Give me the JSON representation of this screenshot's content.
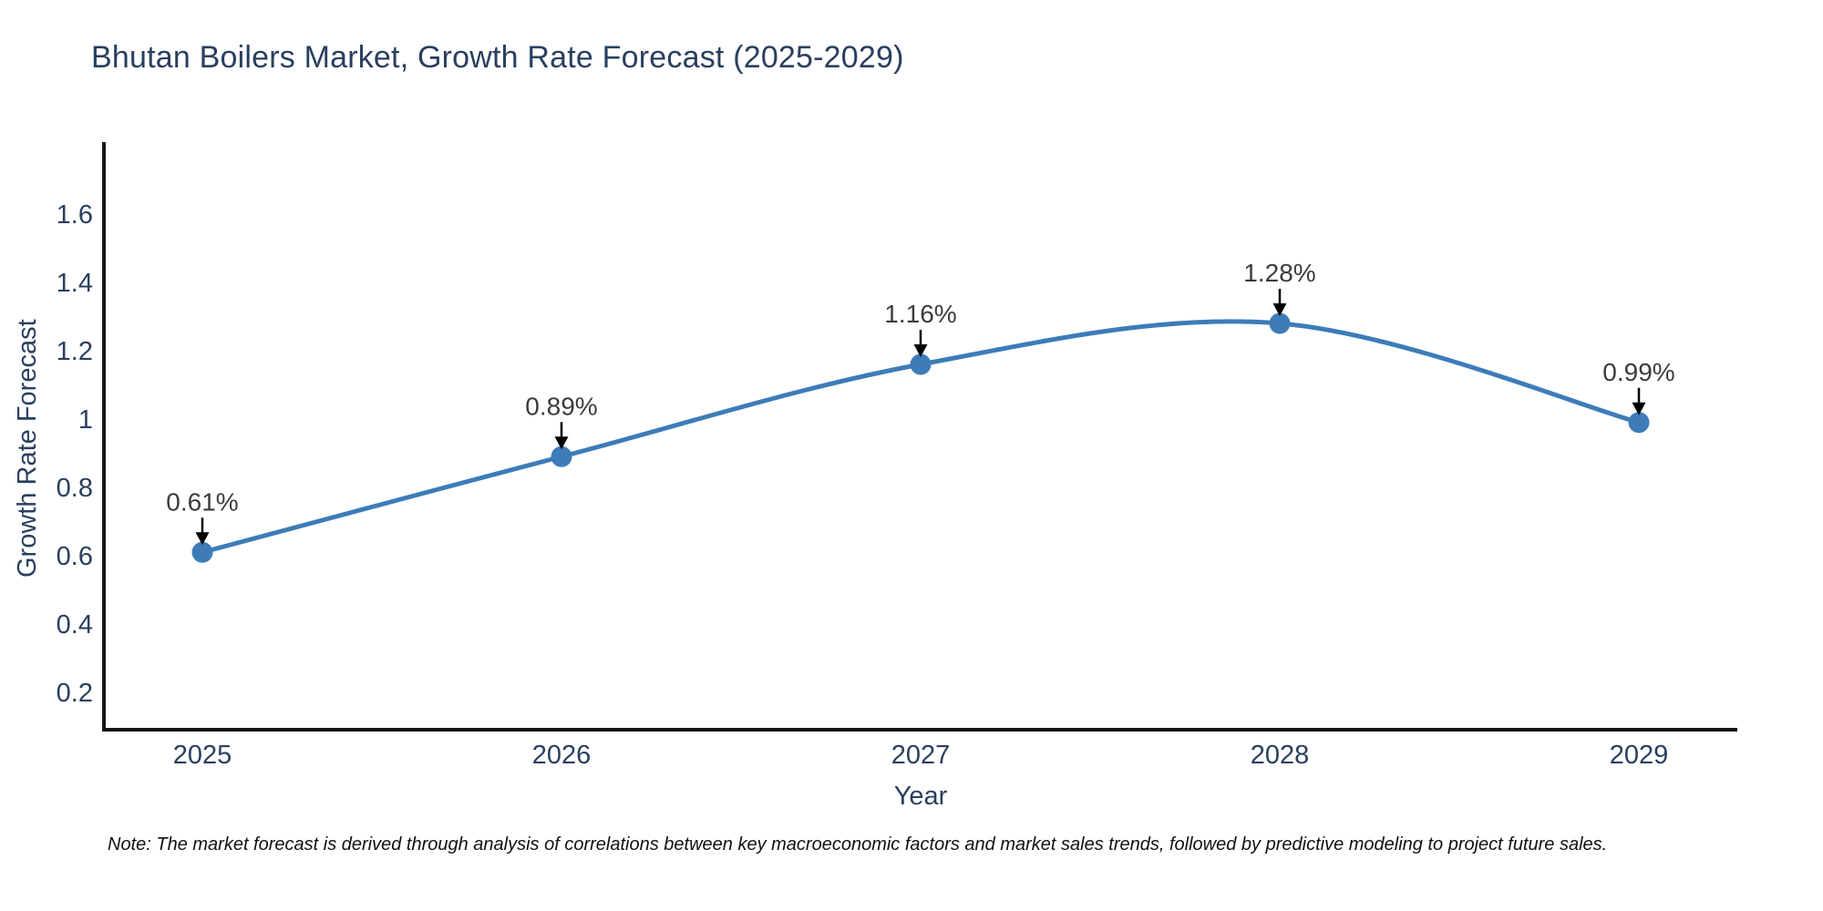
{
  "note": "Note: The market forecast is derived through analysis of correlations between key macroeconomic factors and market sales trends, followed by predictive modeling to project future sales.",
  "chart_data": {
    "type": "line",
    "title": "Bhutan Boilers Market, Growth Rate Forecast (2025-2029)",
    "xlabel": "Year",
    "ylabel": "Growth Rate Forecast",
    "x": [
      2025,
      2026,
      2027,
      2028,
      2029
    ],
    "series": [
      {
        "name": "Growth Rate Forecast",
        "values": [
          0.61,
          0.89,
          1.16,
          1.28,
          0.99
        ]
      }
    ],
    "point_labels": [
      "0.61%",
      "0.89%",
      "1.16%",
      "1.28%",
      "0.99%"
    ],
    "yticks": [
      0.2,
      0.4,
      0.6,
      0.8,
      1,
      1.2,
      1.4,
      1.6
    ],
    "ylim": [
      0.08,
      1.79
    ],
    "line_shape": "spline",
    "grid": false,
    "legend": "none",
    "annotation_arrows": true,
    "colors": {
      "line": "#3d7cb8",
      "marker": "#3d7cb8",
      "axis": "#151515",
      "axis_text": "#2a3f5f",
      "title_text": "#2a3f5f",
      "annotation_text": "#3c3c3c",
      "arrow": "#000000",
      "background": "#ffffff"
    }
  }
}
